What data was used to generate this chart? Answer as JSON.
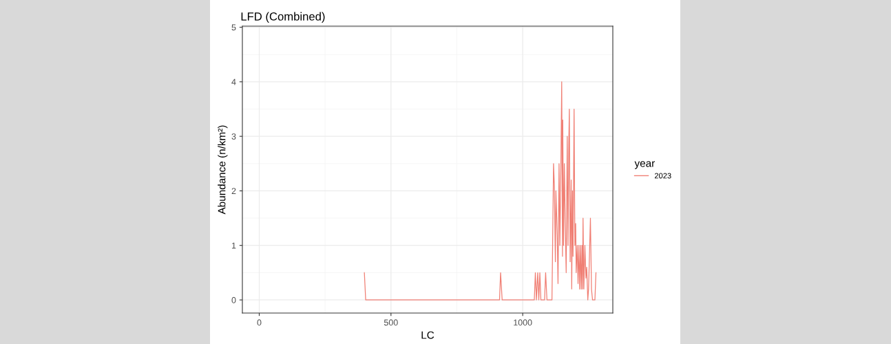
{
  "chart_data": {
    "type": "line",
    "title": "LFD (Combined)",
    "xlabel": "LC",
    "ylabel": "Abundance (n/km²)",
    "legend_title": "year",
    "xlim": [
      -64,
      1342
    ],
    "xticks": [
      0,
      500,
      1000
    ],
    "ylim": [
      -0.24,
      5.02
    ],
    "yticks": [
      0,
      1,
      2,
      3,
      4,
      5
    ],
    "grid": true,
    "legend": "right",
    "series": [
      {
        "name": "2023",
        "color": "#f07f74",
        "x": [
          399,
          404,
          912,
          916,
          922,
          1044,
          1048,
          1052,
          1057,
          1061,
          1065,
          1069,
          1083,
          1087,
          1092,
          1111,
          1113,
          1117,
          1120,
          1124,
          1126,
          1131,
          1134,
          1138,
          1141,
          1145,
          1148,
          1151,
          1152,
          1155,
          1158,
          1161,
          1165,
          1169,
          1172,
          1175,
          1177,
          1180,
          1184,
          1186,
          1189,
          1191,
          1195,
          1198,
          1201,
          1203,
          1207,
          1210,
          1213,
          1216,
          1219,
          1222,
          1225,
          1227,
          1229,
          1232,
          1236,
          1240,
          1243,
          1247,
          1250,
          1257,
          1261,
          1265,
          1274,
          1278
        ],
        "values": [
          0.5,
          0,
          0,
          0.5,
          0,
          0,
          0.5,
          0,
          0.5,
          0,
          0.5,
          0,
          0,
          0.5,
          0,
          0,
          0.8,
          2.5,
          2.1,
          0.7,
          2.0,
          1.2,
          0.3,
          2.5,
          1.0,
          2.5,
          4.0,
          0.8,
          3.3,
          1.0,
          2.5,
          1.5,
          0.5,
          3.0,
          1.0,
          2.9,
          3.5,
          0.7,
          2.2,
          0.2,
          2.0,
          0.8,
          3.5,
          1.0,
          1.4,
          0.5,
          1.0,
          0.3,
          1.0,
          0.2,
          1.0,
          0.2,
          1.0,
          0.2,
          1.5,
          0.2,
          1.0,
          0.4,
          0.6,
          0,
          0.2,
          1.5,
          0.2,
          0,
          0,
          0.5
        ]
      }
    ]
  }
}
